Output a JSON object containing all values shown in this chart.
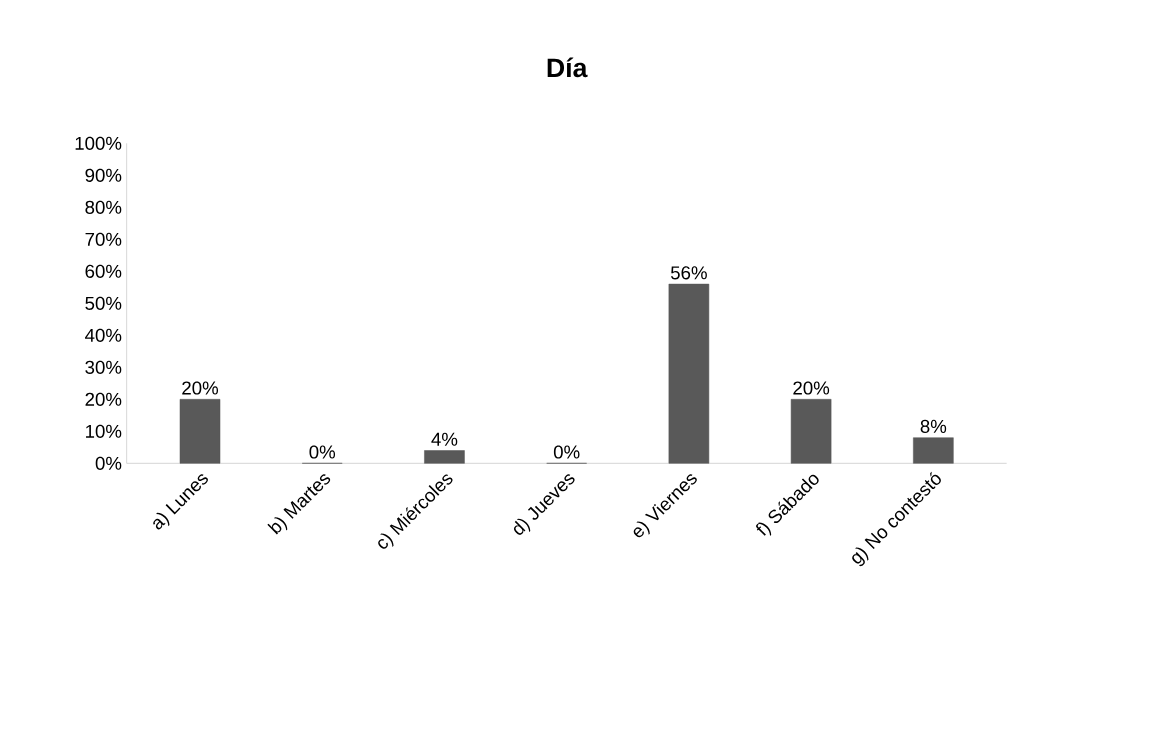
{
  "chart_data": {
    "type": "bar",
    "title": "Día",
    "categories": [
      "a) Lunes",
      "b) Martes",
      "c) Miércoles",
      "d) Jueves",
      "e) Viernes",
      "f) Sábado",
      "g) No contestó"
    ],
    "values": [
      20,
      0,
      4,
      0,
      56,
      20,
      8
    ],
    "value_labels": [
      "20%",
      "0%",
      "4%",
      "0%",
      "56%",
      "20%",
      "8%"
    ],
    "color": "#595959",
    "ylim": [
      0,
      100
    ],
    "yticks": [
      {
        "value": 0,
        "label": "0%"
      },
      {
        "value": 10,
        "label": "10%"
      },
      {
        "value": 20,
        "label": "20%"
      },
      {
        "value": 30,
        "label": "30%"
      },
      {
        "value": 40,
        "label": "40%"
      },
      {
        "value": 50,
        "label": "50%"
      },
      {
        "value": 60,
        "label": "60%"
      },
      {
        "value": 70,
        "label": "70%"
      },
      {
        "value": 80,
        "label": "80%"
      },
      {
        "value": 90,
        "label": "90%"
      },
      {
        "value": 100,
        "label": "100%"
      }
    ],
    "grid": false
  }
}
